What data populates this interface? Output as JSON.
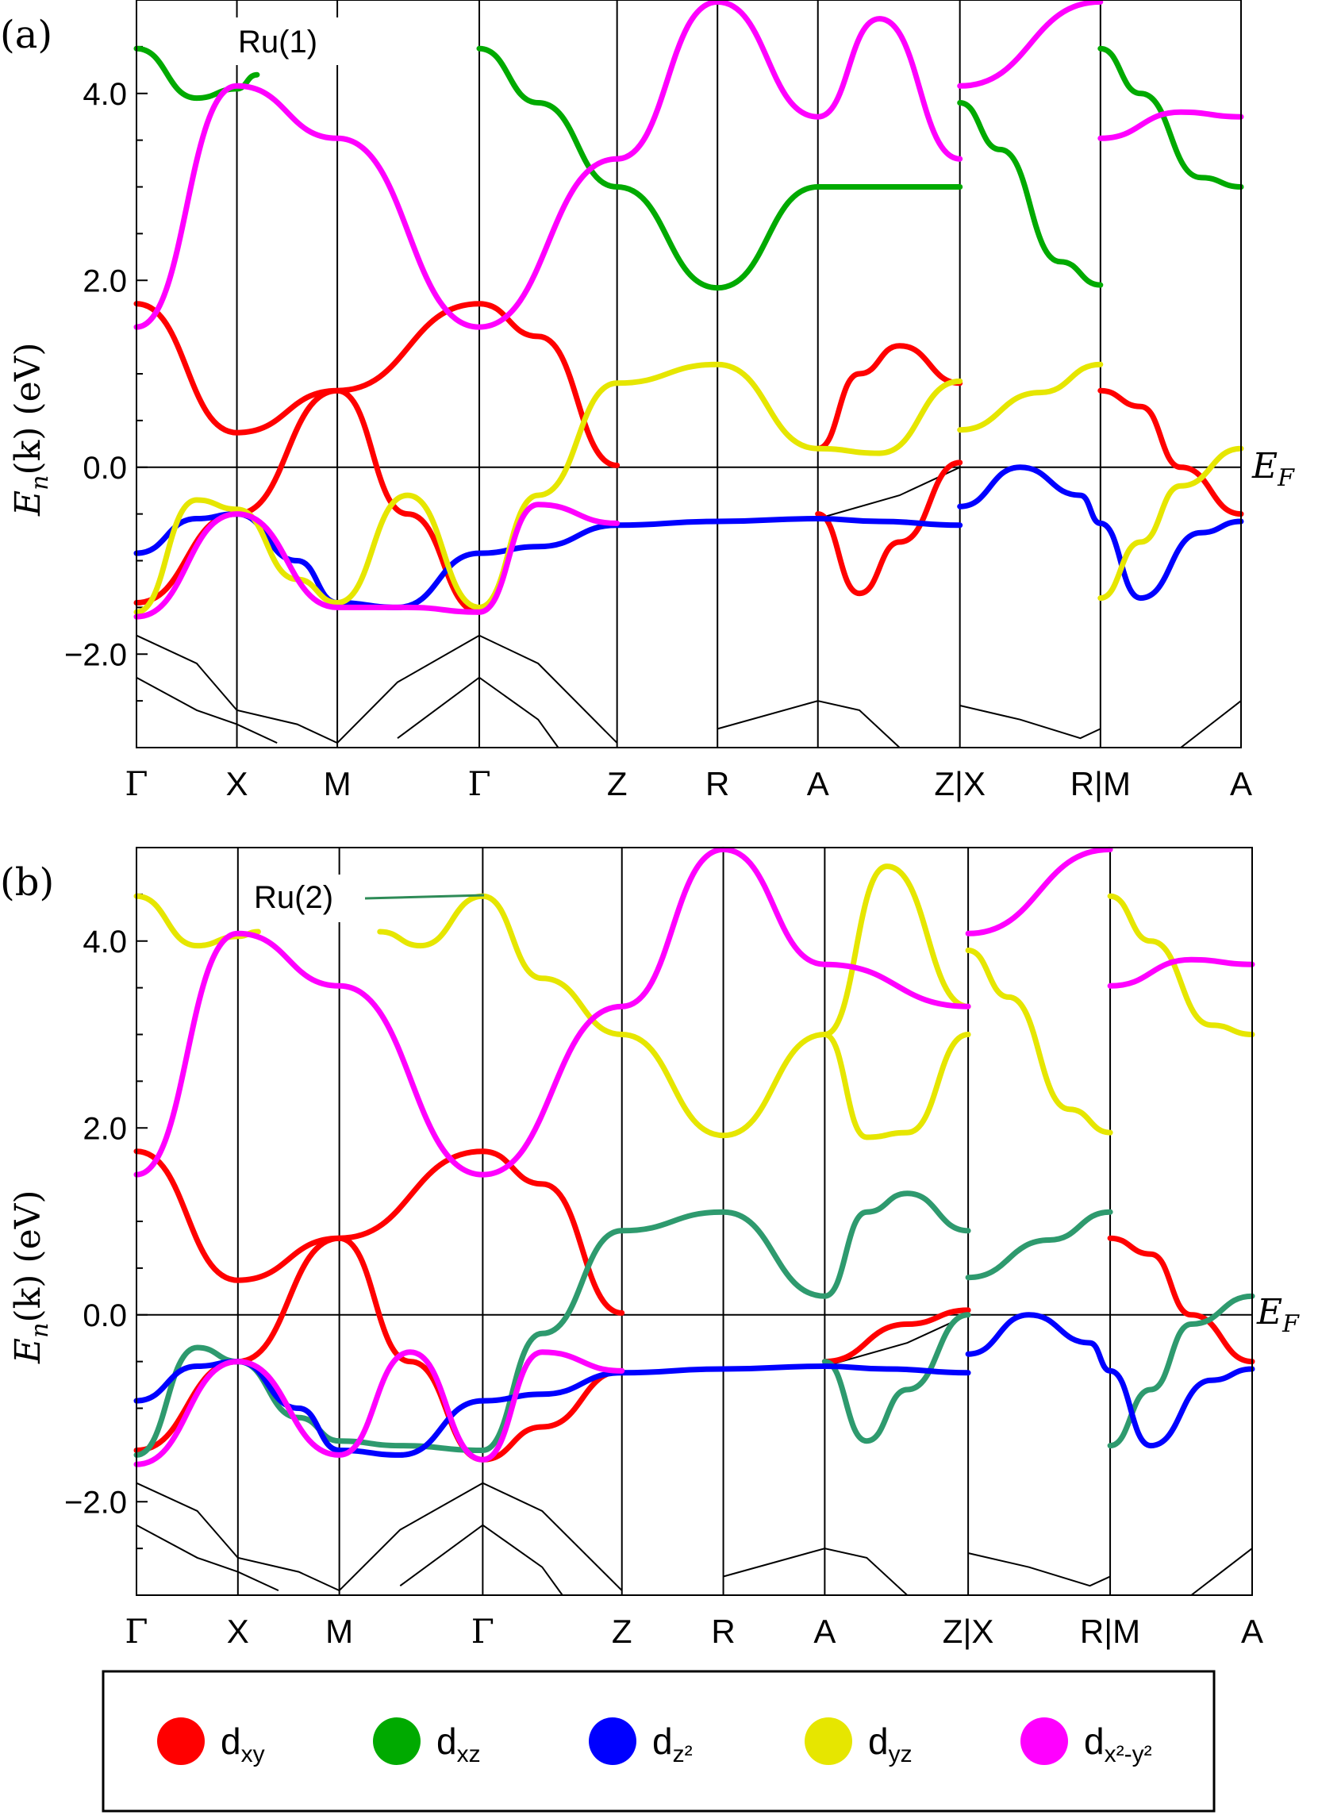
{
  "panels": [
    {
      "id": "a",
      "panel_label": "(a)",
      "atom_label": "Ru(1)",
      "fermi_label": "E",
      "fermi_sub": "F",
      "ylabel_main": "E",
      "ylabel_sub": "n",
      "ylabel_rest": "(k) (eV)"
    },
    {
      "id": "b",
      "panel_label": "(b)",
      "atom_label": "Ru(2)",
      "fermi_label": "E",
      "fermi_sub": "F",
      "ylabel_main": "E",
      "ylabel_sub": "n",
      "ylabel_rest": "(k) (eV)"
    }
  ],
  "legend": {
    "items": [
      {
        "base": "d",
        "sub": "xy",
        "color": "#ff0000"
      },
      {
        "base": "d",
        "sub": "xz",
        "color": "#00aa00"
      },
      {
        "base": "d",
        "sub": "z²",
        "color": "#0000ff"
      },
      {
        "base": "d",
        "sub": "yz",
        "color": "#e6e600"
      },
      {
        "base": "d",
        "sub": "x²-y²",
        "color": "#ff00ff"
      }
    ]
  },
  "chart_data": [
    {
      "type": "line",
      "title": "",
      "ylim": [
        -3.0,
        5.0
      ],
      "yticks": [
        -2.0,
        0.0,
        2.0,
        4.0
      ],
      "ytick_labels": [
        "−2.0",
        "0.0",
        "2.0",
        "4.0"
      ],
      "k_path": [
        "Γ",
        "X",
        "M",
        "Γ",
        "Z",
        "R",
        "A",
        "Z|X",
        "R|M",
        "A"
      ],
      "k_positions": [
        0,
        0.5,
        1.0,
        1.707,
        2.393,
        2.893,
        3.393,
        4.1,
        4.8,
        5.5
      ],
      "series": [
        {
          "name": "dxy",
          "x": [
            0,
            0.5,
            1.0,
            1.707,
            2.0,
            2.393
          ],
          "y": [
            1.75,
            0.37,
            0.82,
            1.75,
            1.4,
            0.02
          ]
        },
        {
          "name": "dxy",
          "x": [
            0,
            0.5,
            1.0,
            1.35,
            1.707
          ],
          "y": [
            -1.45,
            -0.5,
            0.82,
            -0.5,
            -1.55
          ]
        },
        {
          "name": "dxy",
          "x": [
            3.393,
            3.6,
            3.8,
            4.1
          ],
          "y": [
            0.2,
            1.0,
            1.3,
            0.9
          ]
        },
        {
          "name": "dxy",
          "x": [
            3.393,
            3.6,
            3.8,
            4.1
          ],
          "y": [
            -0.5,
            -1.35,
            -0.8,
            0.05
          ]
        },
        {
          "name": "dxy",
          "x": [
            4.8,
            5.0,
            5.2,
            5.5
          ],
          "y": [
            0.82,
            0.65,
            0.0,
            -0.5
          ]
        },
        {
          "name": "dxz",
          "x": [
            0,
            0.3,
            0.5,
            0.6
          ],
          "y": [
            4.48,
            3.95,
            4.05,
            4.2
          ]
        },
        {
          "name": "dxz",
          "x": [
            1.707,
            2.0,
            2.393,
            2.893,
            3.393
          ],
          "y": [
            4.48,
            3.9,
            3.0,
            1.92,
            3.0
          ]
        },
        {
          "name": "dxz",
          "x": [
            4.1,
            4.3,
            4.6,
            4.8
          ],
          "y": [
            3.9,
            3.4,
            2.2,
            1.95
          ]
        },
        {
          "name": "dxz",
          "x": [
            4.8,
            5.0,
            5.3,
            5.5
          ],
          "y": [
            4.48,
            4.0,
            3.1,
            3.0
          ]
        },
        {
          "name": "dxz",
          "x": [
            3.393,
            4.1
          ],
          "y": [
            3.0,
            3.0
          ]
        },
        {
          "name": "dz2",
          "x": [
            0,
            0.3,
            0.5,
            0.8,
            1.0,
            1.3,
            1.707,
            2.0,
            2.393,
            2.893,
            3.393,
            3.7,
            4.1
          ],
          "y": [
            -0.92,
            -0.55,
            -0.5,
            -1.0,
            -1.45,
            -1.5,
            -0.92,
            -0.85,
            -0.62,
            -0.58,
            -0.55,
            -0.58,
            -0.62
          ]
        },
        {
          "name": "dz2",
          "x": [
            4.1,
            4.4,
            4.7,
            4.8,
            5.0,
            5.3,
            5.5
          ],
          "y": [
            -0.42,
            0.0,
            -0.3,
            -0.6,
            -1.4,
            -0.7,
            -0.58
          ]
        },
        {
          "name": "dyz",
          "x": [
            0,
            0.3,
            0.5,
            0.8,
            1.0,
            1.35,
            1.707
          ],
          "y": [
            -1.55,
            -0.35,
            -0.45,
            -1.2,
            -1.45,
            -0.3,
            -1.5
          ]
        },
        {
          "name": "dyz",
          "x": [
            1.707,
            2.0,
            2.393,
            2.893,
            3.393,
            3.7,
            4.1
          ],
          "y": [
            -1.5,
            -0.3,
            0.9,
            1.1,
            0.2,
            0.15,
            0.92
          ]
        },
        {
          "name": "dyz",
          "x": [
            4.1,
            4.5,
            4.8
          ],
          "y": [
            0.4,
            0.8,
            1.1
          ]
        },
        {
          "name": "dyz",
          "x": [
            4.8,
            5.0,
            5.2,
            5.5
          ],
          "y": [
            -1.4,
            -0.8,
            -0.2,
            0.2
          ]
        },
        {
          "name": "dx2-y2",
          "x": [
            0,
            0.5,
            1.0,
            1.707,
            2.393,
            2.893,
            3.393,
            3.7,
            4.1
          ],
          "y": [
            1.5,
            4.08,
            3.52,
            1.5,
            3.3,
            4.98,
            3.75,
            4.8,
            3.3
          ]
        },
        {
          "name": "dx2-y2",
          "x": [
            0,
            0.5,
            1.0,
            1.35,
            1.707,
            2.0,
            2.393
          ],
          "y": [
            -1.6,
            -0.5,
            -1.5,
            -1.5,
            -1.55,
            -0.4,
            -0.6
          ]
        },
        {
          "name": "dx2-y2",
          "x": [
            4.1,
            4.8
          ],
          "y": [
            4.08,
            4.98
          ]
        },
        {
          "name": "dx2-y2",
          "x": [
            4.8,
            5.2,
            5.5
          ],
          "y": [
            3.52,
            3.8,
            3.75
          ]
        }
      ]
    },
    {
      "type": "line",
      "title": "",
      "ylim": [
        -3.0,
        5.0
      ],
      "yticks": [
        -2.0,
        0.0,
        2.0,
        4.0
      ],
      "ytick_labels": [
        "−2.0",
        "0.0",
        "2.0",
        "4.0"
      ],
      "k_path": [
        "Γ",
        "X",
        "M",
        "Γ",
        "Z",
        "R",
        "A",
        "Z|X",
        "R|M",
        "A"
      ],
      "k_positions": [
        0,
        0.5,
        1.0,
        1.707,
        2.393,
        2.893,
        3.393,
        4.1,
        4.8,
        5.5
      ],
      "series": [
        {
          "name": "dxy",
          "x": [
            0,
            0.5,
            1.0,
            1.707,
            2.0,
            2.393
          ],
          "y": [
            1.75,
            0.37,
            0.82,
            1.75,
            1.4,
            0.02
          ]
        },
        {
          "name": "dxy",
          "x": [
            0,
            0.5,
            1.0,
            1.35,
            1.707,
            2.0,
            2.393
          ],
          "y": [
            -1.45,
            -0.5,
            0.82,
            -0.5,
            -1.55,
            -1.2,
            -0.6
          ]
        },
        {
          "name": "dxy",
          "x": [
            3.393,
            3.8,
            4.1
          ],
          "y": [
            -0.5,
            -0.1,
            0.05
          ]
        },
        {
          "name": "dxy",
          "x": [
            4.8,
            5.0,
            5.2,
            5.5
          ],
          "y": [
            0.82,
            0.65,
            0.0,
            -0.5
          ]
        },
        {
          "name": "dxz",
          "x": [
            0,
            0.3,
            0.5,
            0.8,
            1.0,
            1.3,
            1.707
          ],
          "y": [
            -1.5,
            -0.35,
            -0.5,
            -1.1,
            -1.35,
            -1.4,
            -1.45
          ]
        },
        {
          "name": "dxz",
          "x": [
            1.707,
            2.0,
            2.393,
            2.893,
            3.393,
            3.6,
            3.8,
            4.1
          ],
          "y": [
            -1.45,
            -0.2,
            0.9,
            1.1,
            0.2,
            1.1,
            1.3,
            0.9
          ]
        },
        {
          "name": "dxz",
          "x": [
            3.393,
            3.6,
            3.8,
            4.1
          ],
          "y": [
            -0.5,
            -1.35,
            -0.8,
            0.0
          ]
        },
        {
          "name": "dxz",
          "x": [
            4.1,
            4.5,
            4.8
          ],
          "y": [
            0.4,
            0.8,
            1.1
          ]
        },
        {
          "name": "dxz",
          "x": [
            4.8,
            5.0,
            5.2,
            5.5
          ],
          "y": [
            -1.4,
            -0.8,
            -0.1,
            0.2
          ]
        },
        {
          "name": "dz2",
          "x": [
            0,
            0.3,
            0.5,
            0.8,
            1.0,
            1.3,
            1.707,
            2.0,
            2.393,
            2.893,
            3.393,
            3.7,
            4.1
          ],
          "y": [
            -0.92,
            -0.55,
            -0.5,
            -1.0,
            -1.45,
            -1.5,
            -0.92,
            -0.85,
            -0.62,
            -0.58,
            -0.55,
            -0.58,
            -0.62
          ]
        },
        {
          "name": "dz2",
          "x": [
            4.1,
            4.4,
            4.7,
            4.8,
            5.0,
            5.3,
            5.5
          ],
          "y": [
            -0.42,
            0.0,
            -0.3,
            -0.6,
            -1.4,
            -0.7,
            -0.58
          ]
        },
        {
          "name": "dyz",
          "x": [
            0,
            0.3,
            0.5,
            0.6
          ],
          "y": [
            4.48,
            3.95,
            4.05,
            4.1
          ]
        },
        {
          "name": "dyz",
          "x": [
            1.2,
            1.4,
            1.707,
            2.0,
            2.393,
            2.893,
            3.393,
            3.6,
            3.8,
            4.1
          ],
          "y": [
            4.1,
            3.95,
            4.48,
            3.6,
            3.0,
            1.92,
            3.0,
            1.9,
            1.95,
            3.0
          ]
        },
        {
          "name": "dyz",
          "x": [
            3.393,
            3.7,
            4.1
          ],
          "y": [
            3.0,
            4.8,
            3.3
          ]
        },
        {
          "name": "dyz",
          "x": [
            4.1,
            4.3,
            4.6,
            4.8
          ],
          "y": [
            3.9,
            3.4,
            2.2,
            1.95
          ]
        },
        {
          "name": "dyz",
          "x": [
            4.8,
            5.0,
            5.3,
            5.5
          ],
          "y": [
            4.48,
            4.0,
            3.1,
            3.0
          ]
        },
        {
          "name": "dx2-y2",
          "x": [
            0,
            0.5,
            1.0,
            1.707,
            2.393,
            2.893,
            3.393,
            4.1
          ],
          "y": [
            1.5,
            4.08,
            3.52,
            1.5,
            3.3,
            4.98,
            3.75,
            3.3
          ]
        },
        {
          "name": "dx2-y2",
          "x": [
            0,
            0.5,
            1.0,
            1.35,
            1.707,
            2.0,
            2.393
          ],
          "y": [
            -1.6,
            -0.5,
            -1.5,
            -0.4,
            -1.55,
            -0.4,
            -0.6
          ]
        },
        {
          "name": "dx2-y2",
          "x": [
            4.1,
            4.8
          ],
          "y": [
            4.08,
            4.98
          ]
        },
        {
          "name": "dx2-y2",
          "x": [
            4.8,
            5.2,
            5.5
          ],
          "y": [
            3.52,
            3.8,
            3.75
          ]
        }
      ]
    }
  ]
}
